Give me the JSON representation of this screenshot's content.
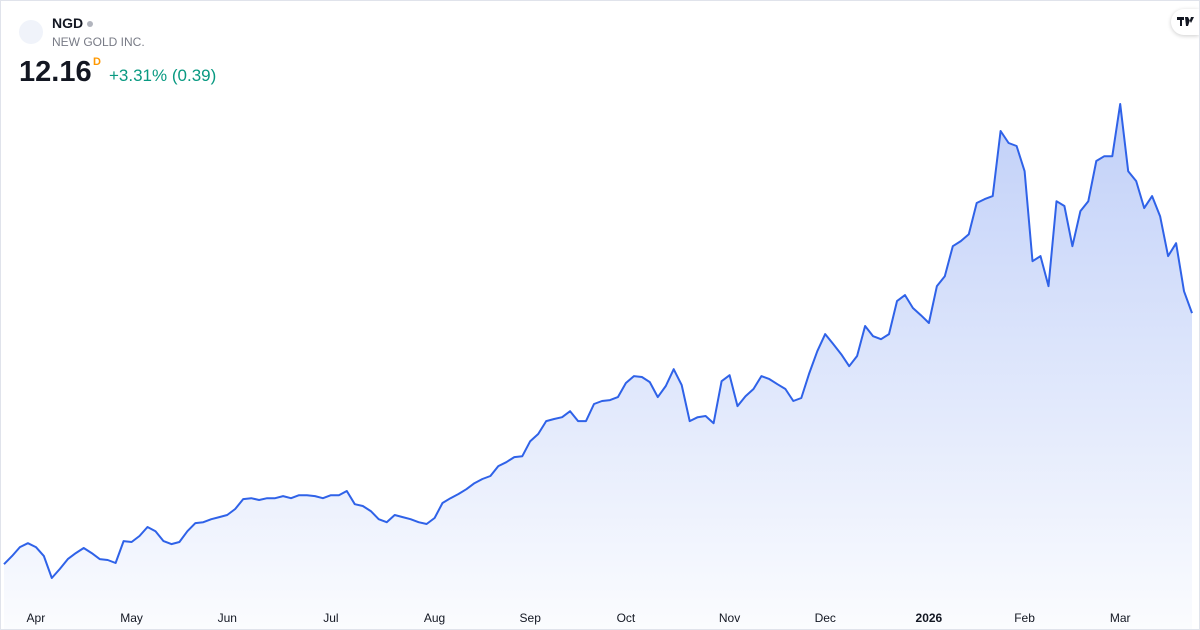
{
  "header": {
    "symbol": "NGD",
    "name": "NEW GOLD INC.",
    "price": 12.16,
    "interval": "D",
    "change": "+3.31% (0.39)"
  },
  "chart_data": {
    "type": "line",
    "color": "#2f62e8",
    "categories": [
      null,
      null,
      null,
      null,
      "Apr",
      null,
      null,
      null,
      null,
      null,
      null,
      null,
      null,
      null,
      null,
      null,
      "May",
      null,
      null,
      null,
      null,
      null,
      null,
      null,
      null,
      null,
      null,
      null,
      "Jun",
      null,
      null,
      null,
      null,
      null,
      null,
      null,
      null,
      null,
      null,
      null,
      null,
      "Jul",
      null,
      null,
      null,
      null,
      null,
      null,
      null,
      null,
      null,
      null,
      null,
      null,
      "Aug",
      null,
      null,
      null,
      null,
      null,
      null,
      null,
      null,
      null,
      null,
      null,
      "Sep",
      null,
      null,
      null,
      null,
      null,
      null,
      null,
      null,
      null,
      null,
      null,
      "Oct",
      null,
      null,
      null,
      null,
      null,
      null,
      null,
      null,
      null,
      null,
      null,
      null,
      "Nov",
      null,
      null,
      null,
      null,
      null,
      null,
      null,
      null,
      null,
      null,
      null,
      "Dec",
      null,
      null,
      null,
      null,
      null,
      null,
      null,
      null,
      null,
      null,
      null,
      null,
      "2026",
      null,
      null,
      null,
      null,
      null,
      null,
      null,
      null,
      null,
      null,
      null,
      "Feb",
      null,
      null,
      null,
      null,
      null,
      null,
      null,
      null,
      null,
      null,
      null,
      "Mar",
      null,
      null,
      null,
      null,
      null,
      null,
      null,
      null,
      null
    ],
    "values": [
      3.79,
      4.06,
      4.36,
      4.49,
      4.36,
      4.06,
      3.33,
      3.63,
      3.96,
      4.16,
      4.33,
      4.16,
      3.96,
      3.93,
      3.83,
      4.56,
      4.53,
      4.73,
      5.03,
      4.89,
      4.56,
      4.46,
      4.53,
      4.89,
      5.16,
      5.19,
      5.29,
      5.36,
      5.43,
      5.63,
      5.96,
      5.99,
      5.93,
      5.99,
      5.99,
      6.06,
      5.99,
      6.09,
      6.09,
      6.06,
      5.99,
      6.09,
      6.09,
      6.23,
      5.79,
      5.73,
      5.56,
      5.29,
      5.19,
      5.43,
      5.36,
      5.29,
      5.19,
      5.13,
      5.33,
      5.83,
      5.99,
      6.13,
      6.29,
      6.49,
      6.63,
      6.73,
      7.06,
      7.19,
      7.36,
      7.39,
      7.89,
      8.13,
      8.56,
      8.63,
      8.69,
      8.89,
      8.56,
      8.56,
      9.13,
      9.23,
      9.26,
      9.36,
      9.83,
      10.06,
      10.03,
      9.86,
      9.36,
      9.73,
      10.29,
      9.76,
      8.56,
      8.69,
      8.73,
      8.49,
      9.89,
      10.09,
      9.06,
      9.39,
      9.63,
      10.06,
      9.96,
      9.79,
      9.63,
      9.23,
      9.33,
      10.16,
      10.89,
      11.46,
      11.13,
      10.79,
      10.39,
      10.73,
      11.73,
      11.39,
      11.29,
      11.46,
      12.56,
      12.76,
      12.33,
      12.09,
      11.83,
      13.06,
      13.39,
      14.39,
      14.56,
      14.79,
      15.83,
      15.96,
      16.06,
      18.23,
      17.83,
      17.73,
      16.89,
      13.89,
      14.06,
      13.06,
      15.89,
      15.73,
      14.39,
      15.56,
      15.89,
      17.23,
      17.39,
      17.39,
      19.13,
      16.89,
      16.56,
      15.66,
      16.06,
      15.39,
      14.06,
      14.49,
      12.89,
      12.16
    ]
  }
}
